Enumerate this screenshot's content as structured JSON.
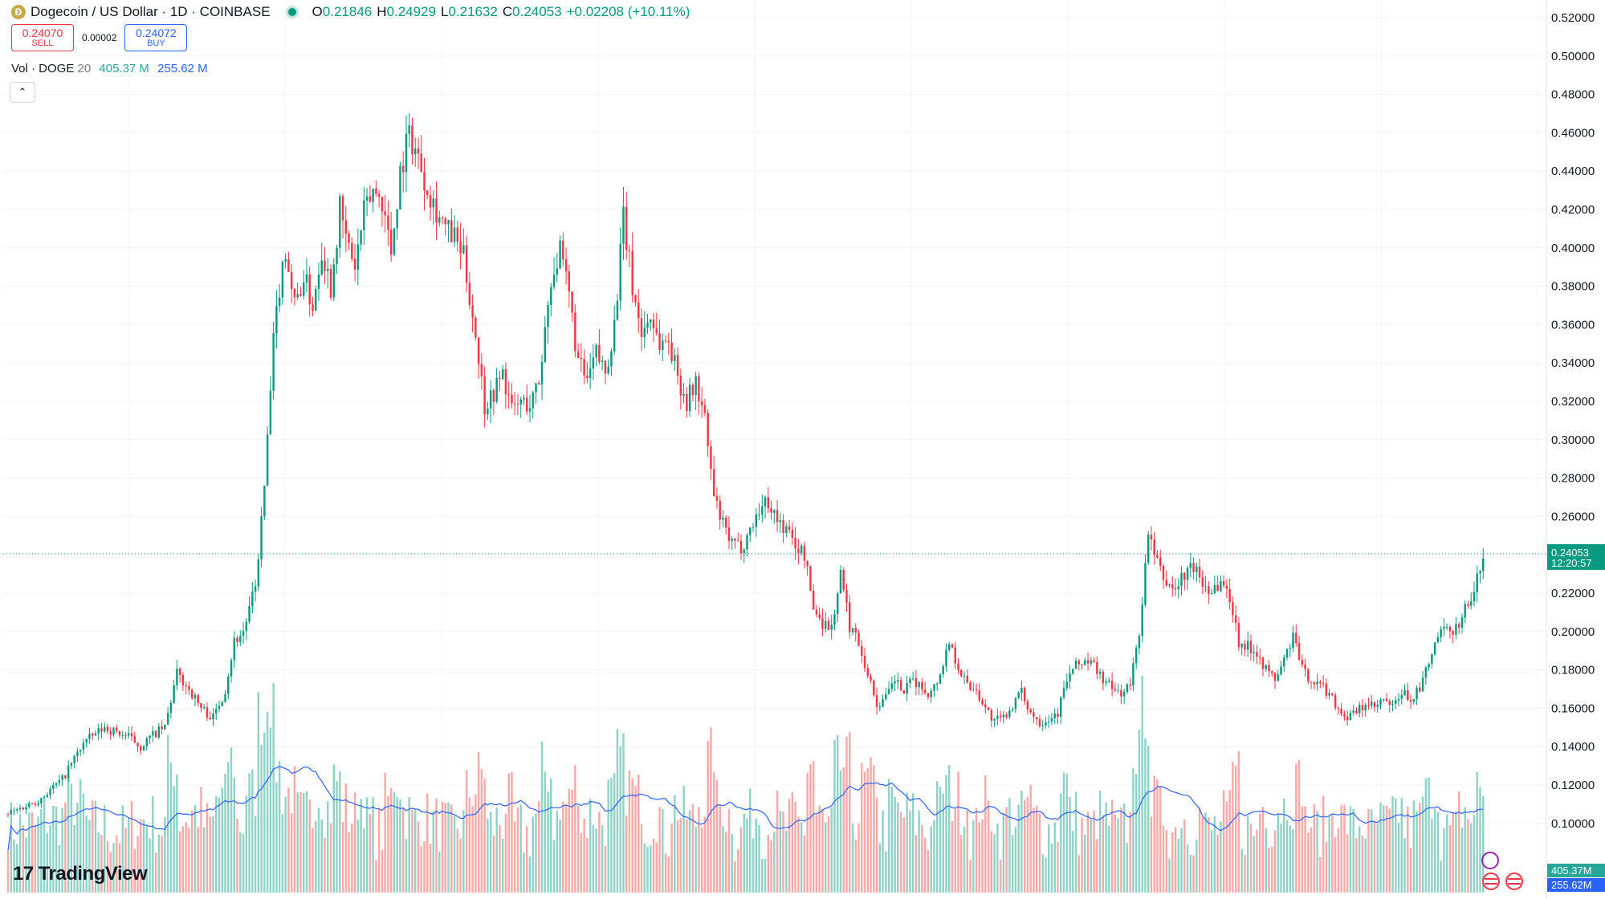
{
  "header": {
    "coin_icon": "dogecoin-coin-icon",
    "title": "Dogecoin / US Dollar · 1D · COINBASE",
    "open_label": "O",
    "open": "0.21846",
    "high_label": "H",
    "high": "0.24929",
    "low_label": "L",
    "low": "0.21632",
    "close_label": "C",
    "close": "0.24053",
    "change": "+0.02208 (+10.11%)"
  },
  "trade": {
    "sell_price": "0.24070",
    "sell_label": "SELL",
    "spread": "0.00002",
    "buy_price": "0.24072",
    "buy_label": "BUY"
  },
  "volume_legend": {
    "label": "Vol · DOGE",
    "length": "20",
    "volume": "405.37 M",
    "ma": "255.62 M"
  },
  "collapse_icon": "chevron-up-icon",
  "branding": {
    "logo_text": "TradingView",
    "logo_icon": "tradingview-logo-icon"
  },
  "price_badge": {
    "price": "0.24053",
    "countdown": "12:20:57"
  },
  "volume_badges": {
    "volume": "405.37M",
    "ma": "255.62M"
  },
  "colors": {
    "up": "#089981",
    "down": "#f23645",
    "vol_up": "#8fd3c8",
    "vol_down": "#f7a9a7",
    "ma": "#2962ff"
  },
  "chart_data": {
    "type": "candlestick",
    "symbol": "Dogecoin / US Dollar",
    "interval": "1D",
    "exchange": "COINBASE",
    "y_ticks": [
      "0.52000",
      "0.50000",
      "0.48000",
      "0.46000",
      "0.44000",
      "0.42000",
      "0.40000",
      "0.38000",
      "0.36000",
      "0.34000",
      "0.32000",
      "0.30000",
      "0.28000",
      "0.26000",
      "0.24000",
      "0.22000",
      "0.20000",
      "0.18000",
      "0.16000",
      "0.14000",
      "0.12000",
      "0.10000"
    ],
    "ylim": [
      0.085,
      0.525
    ],
    "last_price": 0.24053,
    "price_path": [
      [
        0,
        0.105
      ],
      [
        10,
        0.112
      ],
      [
        18,
        0.123
      ],
      [
        25,
        0.142
      ],
      [
        32,
        0.15
      ],
      [
        40,
        0.145
      ],
      [
        44,
        0.14
      ],
      [
        48,
        0.146
      ],
      [
        52,
        0.15
      ],
      [
        56,
        0.178
      ],
      [
        60,
        0.17
      ],
      [
        64,
        0.16
      ],
      [
        68,
        0.155
      ],
      [
        72,
        0.17
      ],
      [
        75,
        0.195
      ],
      [
        78,
        0.2
      ],
      [
        82,
        0.223
      ],
      [
        85,
        0.275
      ],
      [
        88,
        0.35
      ],
      [
        90,
        0.38
      ],
      [
        92,
        0.4
      ],
      [
        95,
        0.37
      ],
      [
        98,
        0.385
      ],
      [
        101,
        0.37
      ],
      [
        104,
        0.4
      ],
      [
        107,
        0.38
      ],
      [
        110,
        0.42
      ],
      [
        112,
        0.405
      ],
      [
        115,
        0.39
      ],
      [
        118,
        0.418
      ],
      [
        121,
        0.43
      ],
      [
        124,
        0.425
      ],
      [
        127,
        0.398
      ],
      [
        130,
        0.44
      ],
      [
        133,
        0.46
      ],
      [
        136,
        0.447
      ],
      [
        139,
        0.432
      ],
      [
        142,
        0.42
      ],
      [
        145,
        0.41
      ],
      [
        148,
        0.405
      ],
      [
        151,
        0.395
      ],
      [
        155,
        0.355
      ],
      [
        158,
        0.318
      ],
      [
        161,
        0.325
      ],
      [
        164,
        0.335
      ],
      [
        167,
        0.315
      ],
      [
        170,
        0.32
      ],
      [
        173,
        0.318
      ],
      [
        176,
        0.33
      ],
      [
        180,
        0.385
      ],
      [
        183,
        0.397
      ],
      [
        186,
        0.375
      ],
      [
        189,
        0.34
      ],
      [
        192,
        0.33
      ],
      [
        195,
        0.345
      ],
      [
        198,
        0.335
      ],
      [
        201,
        0.36
      ],
      [
        204,
        0.415
      ],
      [
        207,
        0.38
      ],
      [
        210,
        0.355
      ],
      [
        213,
        0.365
      ],
      [
        216,
        0.35
      ],
      [
        219,
        0.352
      ],
      [
        222,
        0.333
      ],
      [
        225,
        0.32
      ],
      [
        228,
        0.33
      ],
      [
        231,
        0.31
      ],
      [
        234,
        0.27
      ],
      [
        237,
        0.255
      ],
      [
        240,
        0.245
      ],
      [
        243,
        0.244
      ],
      [
        246,
        0.253
      ],
      [
        249,
        0.264
      ],
      [
        252,
        0.268
      ],
      [
        255,
        0.258
      ],
      [
        258,
        0.253
      ],
      [
        261,
        0.245
      ],
      [
        264,
        0.24
      ],
      [
        267,
        0.212
      ],
      [
        270,
        0.205
      ],
      [
        273,
        0.202
      ],
      [
        276,
        0.23
      ],
      [
        279,
        0.203
      ],
      [
        282,
        0.195
      ],
      [
        285,
        0.178
      ],
      [
        288,
        0.162
      ],
      [
        291,
        0.165
      ],
      [
        294,
        0.175
      ],
      [
        297,
        0.168
      ],
      [
        300,
        0.175
      ],
      [
        303,
        0.17
      ],
      [
        306,
        0.168
      ],
      [
        309,
        0.178
      ],
      [
        312,
        0.195
      ],
      [
        315,
        0.182
      ],
      [
        318,
        0.172
      ],
      [
        321,
        0.17
      ],
      [
        324,
        0.16
      ],
      [
        327,
        0.153
      ],
      [
        330,
        0.155
      ],
      [
        333,
        0.162
      ],
      [
        336,
        0.168
      ],
      [
        339,
        0.158
      ],
      [
        342,
        0.153
      ],
      [
        345,
        0.155
      ],
      [
        348,
        0.158
      ],
      [
        351,
        0.175
      ],
      [
        354,
        0.182
      ],
      [
        357,
        0.185
      ],
      [
        360,
        0.182
      ],
      [
        363,
        0.175
      ],
      [
        366,
        0.17
      ],
      [
        369,
        0.168
      ],
      [
        372,
        0.172
      ],
      [
        375,
        0.2
      ],
      [
        378,
        0.25
      ],
      [
        381,
        0.235
      ],
      [
        384,
        0.225
      ],
      [
        387,
        0.222
      ],
      [
        390,
        0.23
      ],
      [
        393,
        0.234
      ],
      [
        396,
        0.225
      ],
      [
        399,
        0.222
      ],
      [
        402,
        0.226
      ],
      [
        405,
        0.218
      ],
      [
        408,
        0.195
      ],
      [
        411,
        0.192
      ],
      [
        414,
        0.19
      ],
      [
        417,
        0.18
      ],
      [
        420,
        0.175
      ],
      [
        423,
        0.185
      ],
      [
        426,
        0.198
      ],
      [
        429,
        0.18
      ],
      [
        432,
        0.175
      ],
      [
        435,
        0.172
      ],
      [
        438,
        0.168
      ],
      [
        441,
        0.16
      ],
      [
        444,
        0.155
      ],
      [
        447,
        0.158
      ],
      [
        450,
        0.162
      ],
      [
        453,
        0.16
      ],
      [
        456,
        0.164
      ],
      [
        459,
        0.16
      ],
      [
        462,
        0.168
      ],
      [
        465,
        0.165
      ],
      [
        468,
        0.17
      ],
      [
        471,
        0.183
      ],
      [
        474,
        0.198
      ],
      [
        477,
        0.2
      ],
      [
        480,
        0.202
      ],
      [
        483,
        0.212
      ],
      [
        486,
        0.22
      ],
      [
        489,
        0.24
      ]
    ],
    "volume_axis_note": "volume histogram with 20-period moving average at chart bottom"
  }
}
